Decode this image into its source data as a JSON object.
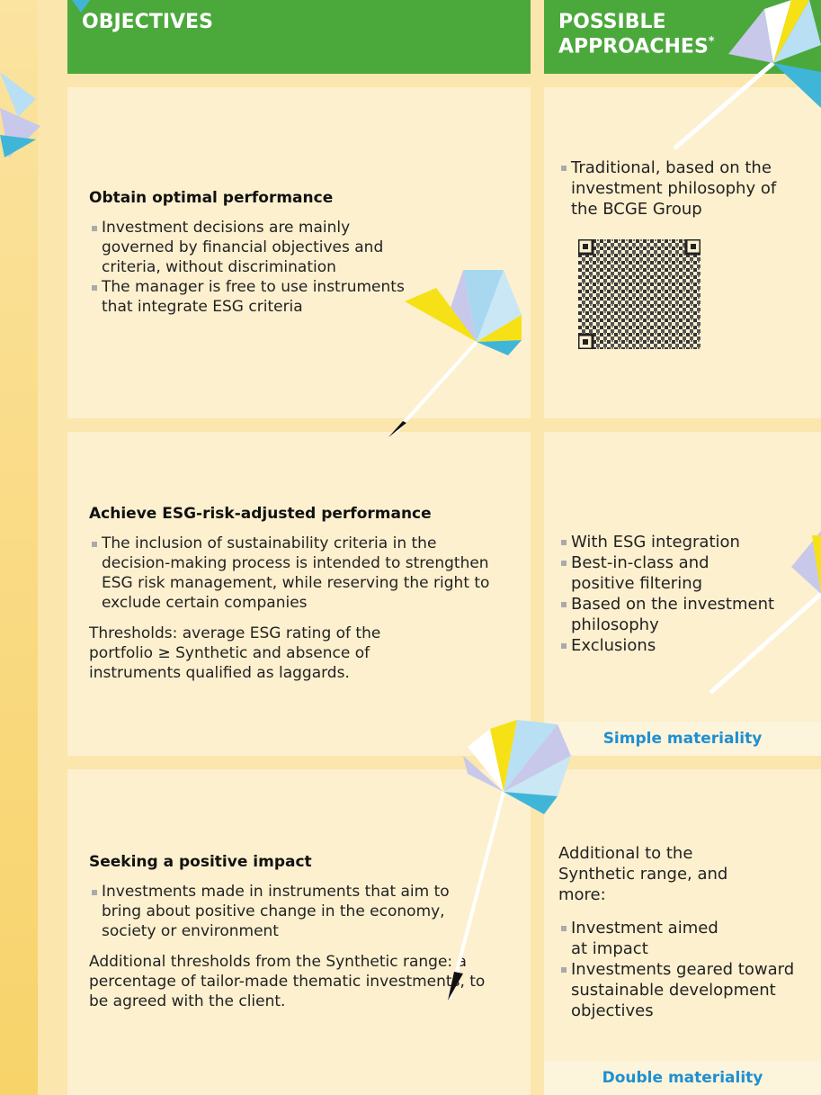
{
  "header": {
    "objectives": "OBJECTIVES",
    "approaches": "POSSIBLE APPROACHES",
    "approaches_mark": "*"
  },
  "rows": [
    {
      "title": "Obtain optimal performance",
      "bullets": [
        "Investment decisions are mainly governed by financial objectives and criteria, without discrimination",
        "The manager is free to use instruments that integrate ESG criteria"
      ],
      "approaches": [
        "Traditional, based on the investment philosophy of the BCGE Group"
      ]
    },
    {
      "title": "Achieve ESG-risk-adjusted performance",
      "bullets": [
        "The inclusion of sustainability criteria in the decision-making process is intended to strengthen ESG risk management, while reserving the right to exclude certain companies"
      ],
      "note": "Thresholds: average ESG rating of the portfolio ≥ Synthetic and absence of instruments qualified as laggards.",
      "approaches": [
        "With ESG integration",
        "Best-in-class and positive filtering",
        "Based on the investment philosophy",
        "Exclusions"
      ],
      "materiality": "Simple materiality"
    },
    {
      "title": "Seeking a positive impact",
      "bullets": [
        "Investments made in instruments that aim to bring about positive change in the economy, society or environment"
      ],
      "note": "Additional thresholds from the Synthetic range: a percentage of tailor-made thematic investments, to be agreed with the client.",
      "approaches_intro": "Additional to the Synthetic range, and more:",
      "approaches": [
        "Investment aimed at impact",
        "Investments geared toward sustainable development objectives"
      ],
      "materiality": "Double materiality"
    }
  ]
}
